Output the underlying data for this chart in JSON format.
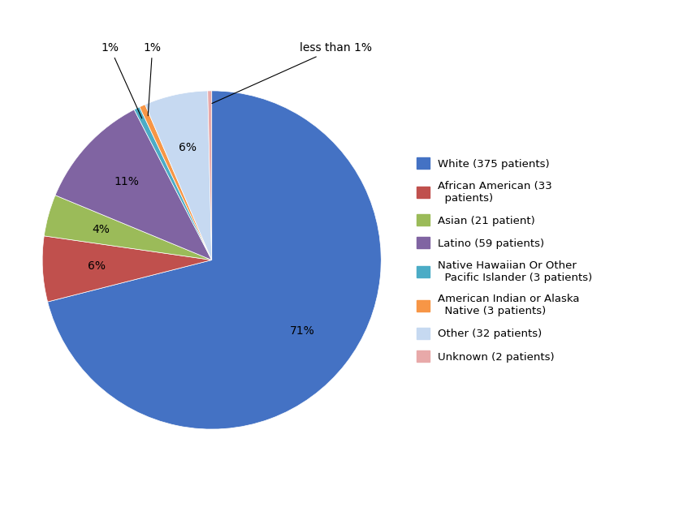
{
  "labels": [
    "White (375 patients)",
    "African American (33\n  patients)",
    "Asian (21 patient)",
    "Latino (59 patients)",
    "Native Hawaiian Or Other\n  Pacific Islander (3 patients)",
    "American Indian or Alaska\n  Native (3 patients)",
    "Other (32 patients)",
    "Unknown (2 patients)"
  ],
  "values": [
    375,
    33,
    21,
    59,
    3,
    3,
    32,
    2
  ],
  "colors": [
    "#4472C4",
    "#C0504D",
    "#9BBB59",
    "#8064A2",
    "#4BACC6",
    "#F79646",
    "#C6D9F1",
    "#E8A9A9"
  ],
  "pct_labels": [
    "71%",
    "6%",
    "4%",
    "11%",
    "1%",
    "1%",
    "6%",
    "less than 1%"
  ],
  "background_color": "#ffffff",
  "figsize": [
    8.41,
    6.41
  ],
  "dpi": 100
}
